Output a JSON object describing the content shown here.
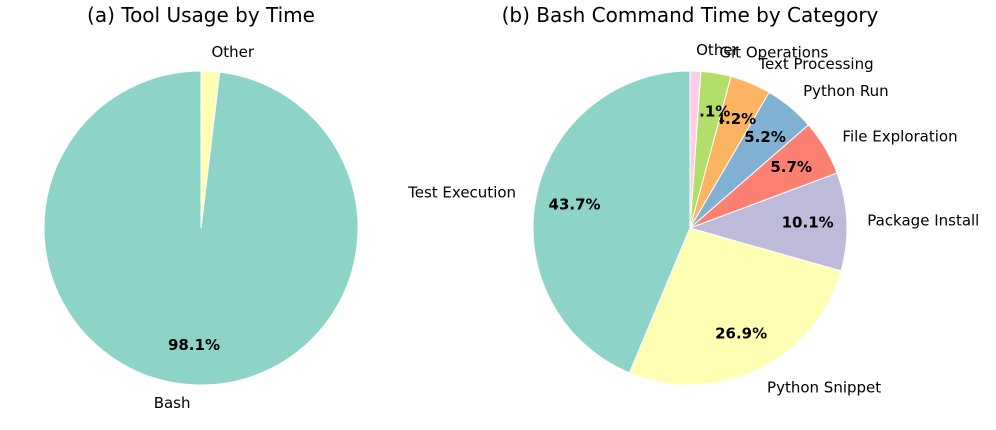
{
  "chart_data": [
    {
      "type": "pie",
      "title": "(a) Tool Usage by Time",
      "start_angle_deg": 90,
      "direction": "counterclockwise",
      "slices": [
        {
          "label": "Bash",
          "value": 98.1,
          "pct_text": "98.1%",
          "color": "#8dd3c7"
        },
        {
          "label": "Other",
          "value": 1.9,
          "pct_text": "",
          "color": "#ffffb3"
        }
      ]
    },
    {
      "type": "pie",
      "title": "(b) Bash Command Time by Category",
      "start_angle_deg": 90,
      "direction": "counterclockwise",
      "slices": [
        {
          "label": "Test Execution",
          "value": 43.7,
          "pct_text": "43.7%",
          "color": "#8dd3c7"
        },
        {
          "label": "Python Snippet",
          "value": 26.9,
          "pct_text": "26.9%",
          "color": "#ffffb3"
        },
        {
          "label": "Package Install",
          "value": 10.1,
          "pct_text": "10.1%",
          "color": "#bebada"
        },
        {
          "label": "File Exploration",
          "value": 5.7,
          "pct_text": "5.7%",
          "color": "#fb8072"
        },
        {
          "label": "Python Run",
          "value": 5.2,
          "pct_text": "5.2%",
          "color": "#80b1d3"
        },
        {
          "label": "Text Processing",
          "value": 4.2,
          "pct_text": "4.2%",
          "color": "#fdb462"
        },
        {
          "label": "Git Operations",
          "value": 3.1,
          "pct_text": "3.1%",
          "color": "#b3de69"
        },
        {
          "label": "Other",
          "value": 1.1,
          "pct_text": "",
          "color": "#fccde5"
        }
      ]
    }
  ]
}
